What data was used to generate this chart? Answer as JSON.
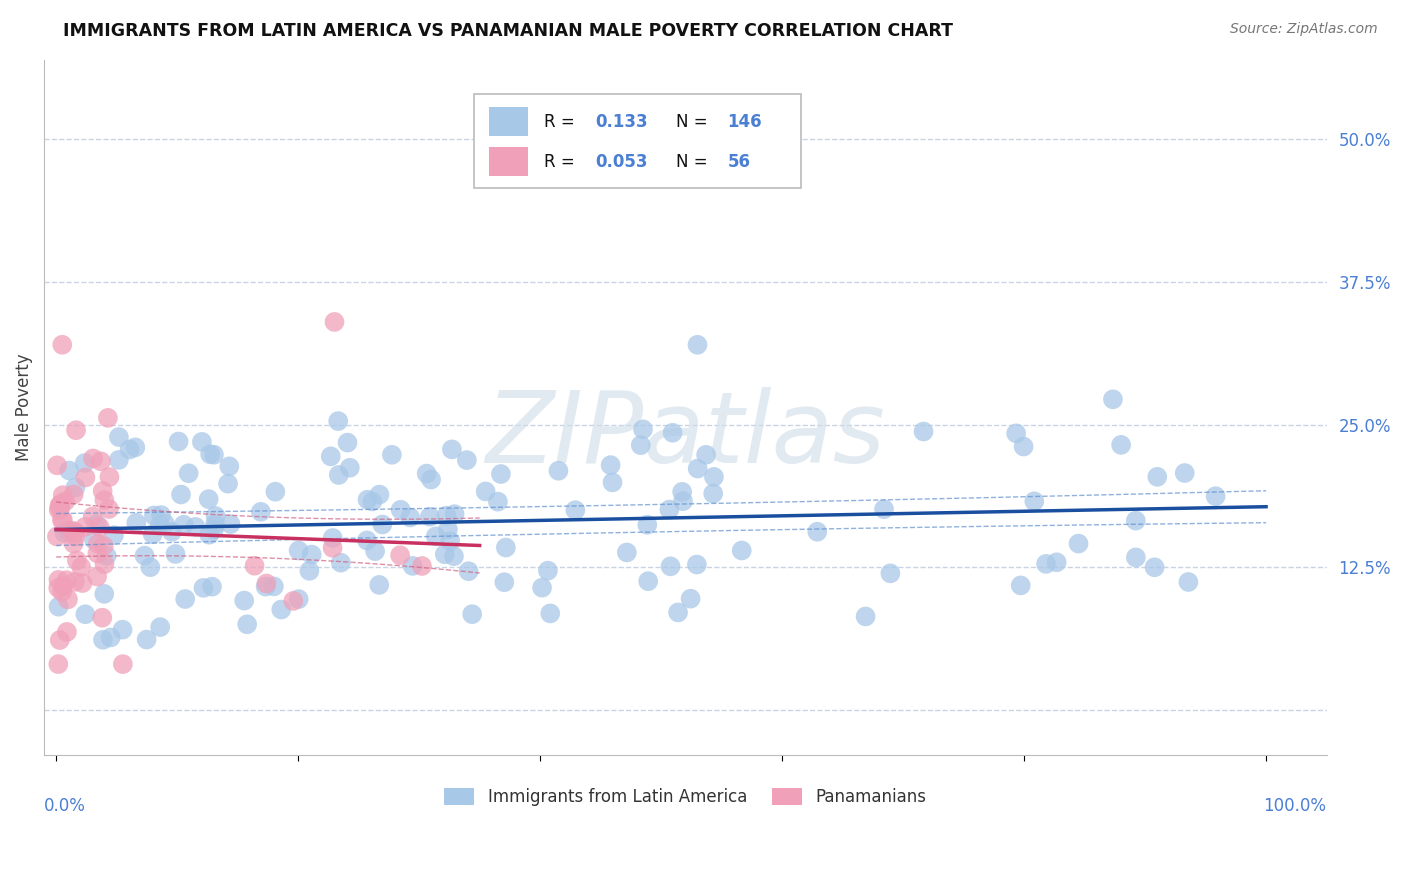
{
  "title": "IMMIGRANTS FROM LATIN AMERICA VS PANAMANIAN MALE POVERTY CORRELATION CHART",
  "source": "Source: ZipAtlas.com",
  "ylabel": "Male Poverty",
  "yticks": [
    0.0,
    0.125,
    0.25,
    0.375,
    0.5
  ],
  "ytick_labels": [
    "",
    "12.5%",
    "25.0%",
    "37.5%",
    "50.0%"
  ],
  "xlim": [
    -0.01,
    1.05
  ],
  "ylim": [
    -0.04,
    0.57
  ],
  "watermark": "ZIPatlas",
  "color_blue": "#a8c8e8",
  "color_pink": "#f0a0b8",
  "color_line_blue": "#1a4fa0",
  "color_line_pink": "#c83060",
  "color_ci_blue": "#6090d0",
  "color_ci_pink": "#d06080",
  "bg_color": "#ffffff",
  "grid_color": "#c8d4e4",
  "n_blue": 146,
  "n_pink": 56,
  "blue_line_y0": 0.158,
  "blue_line_y1": 0.178,
  "pink_line_y0": 0.158,
  "pink_line_y1": 0.144,
  "pink_line_x1": 0.35
}
